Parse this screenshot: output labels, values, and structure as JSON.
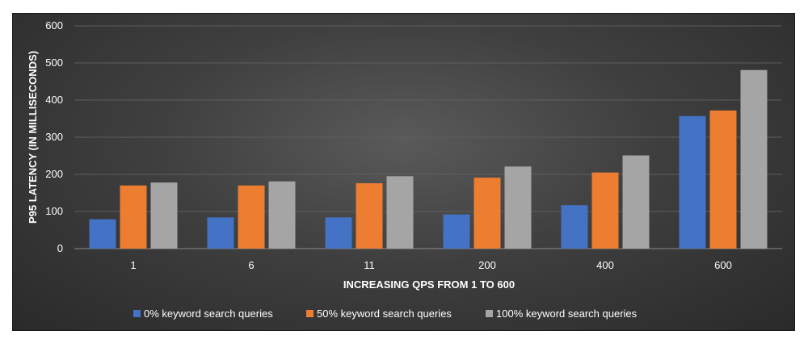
{
  "chart_data": {
    "type": "bar",
    "title": "",
    "xlabel": "INCREASING QPS  FROM 1 TO 600",
    "ylabel": "P95 LATENCY (IN MILLISECONDS)",
    "ylim": [
      0,
      600
    ],
    "yticks": [
      0,
      100,
      200,
      300,
      400,
      500,
      600
    ],
    "categories": [
      "1",
      "6",
      "11",
      "200",
      "400",
      "600"
    ],
    "series": [
      {
        "name": "0% keyword search queries",
        "color": "#4472c4",
        "values": [
          79,
          84,
          84,
          92,
          117,
          357
        ]
      },
      {
        "name": "50% keyword search queries",
        "color": "#ed7d31",
        "values": [
          170,
          170,
          176,
          191,
          205,
          372
        ]
      },
      {
        "name": "100% keyword search queries",
        "color": "#a5a5a5",
        "values": [
          178,
          181,
          195,
          221,
          251,
          481
        ]
      }
    ],
    "grid": true,
    "legend_position": "bottom"
  }
}
